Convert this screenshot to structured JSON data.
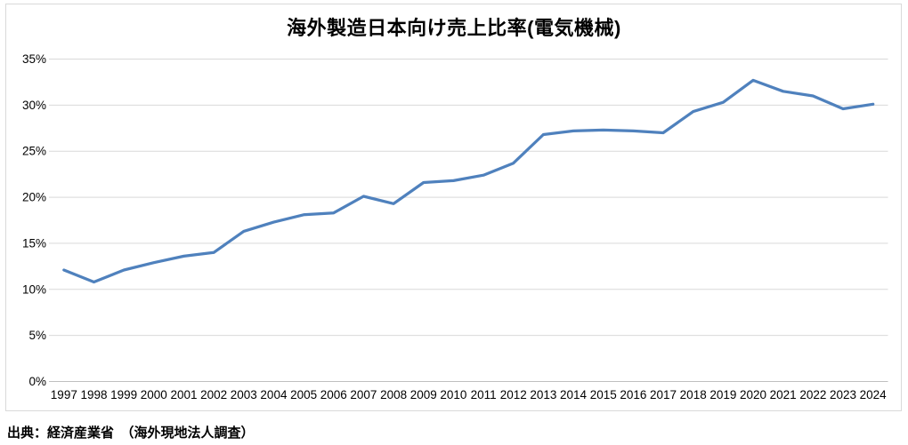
{
  "chart_data": {
    "type": "line",
    "title": "海外製造日本向け売上比率(電気機械)",
    "categories": [
      "1997",
      "1998",
      "1999",
      "2000",
      "2001",
      "2002",
      "2003",
      "2004",
      "2005",
      "2006",
      "2007",
      "2008",
      "2009",
      "2010",
      "2011",
      "2012",
      "2013",
      "2014",
      "2015",
      "2016",
      "2017",
      "2018",
      "2019",
      "2020",
      "2021",
      "2022",
      "2023",
      "2024"
    ],
    "values": [
      12.1,
      10.8,
      12.1,
      12.9,
      13.6,
      14.0,
      16.3,
      17.3,
      18.1,
      18.3,
      20.1,
      19.3,
      21.6,
      21.8,
      22.4,
      23.7,
      26.8,
      27.2,
      27.3,
      27.2,
      27.0,
      29.3,
      30.3,
      32.7,
      31.5,
      31.0,
      29.6,
      30.1
    ],
    "xlabel": "",
    "ylabel": "",
    "ylim": [
      0,
      35
    ],
    "ytick_step": 5,
    "y_tick_labels": [
      "0%",
      "5%",
      "10%",
      "15%",
      "20%",
      "25%",
      "30%",
      "35%"
    ],
    "grid": true,
    "legend_position": "none"
  },
  "footer": {
    "source": "出典：経済産業省　（海外現地法人調査）"
  },
  "colors": {
    "line": "#4F81BD",
    "gridline": "#D9D9D9",
    "axis_line": "#BFBFBF",
    "frame_border": "#D9D9D9",
    "text": "#000000",
    "background": "#FFFFFF"
  }
}
